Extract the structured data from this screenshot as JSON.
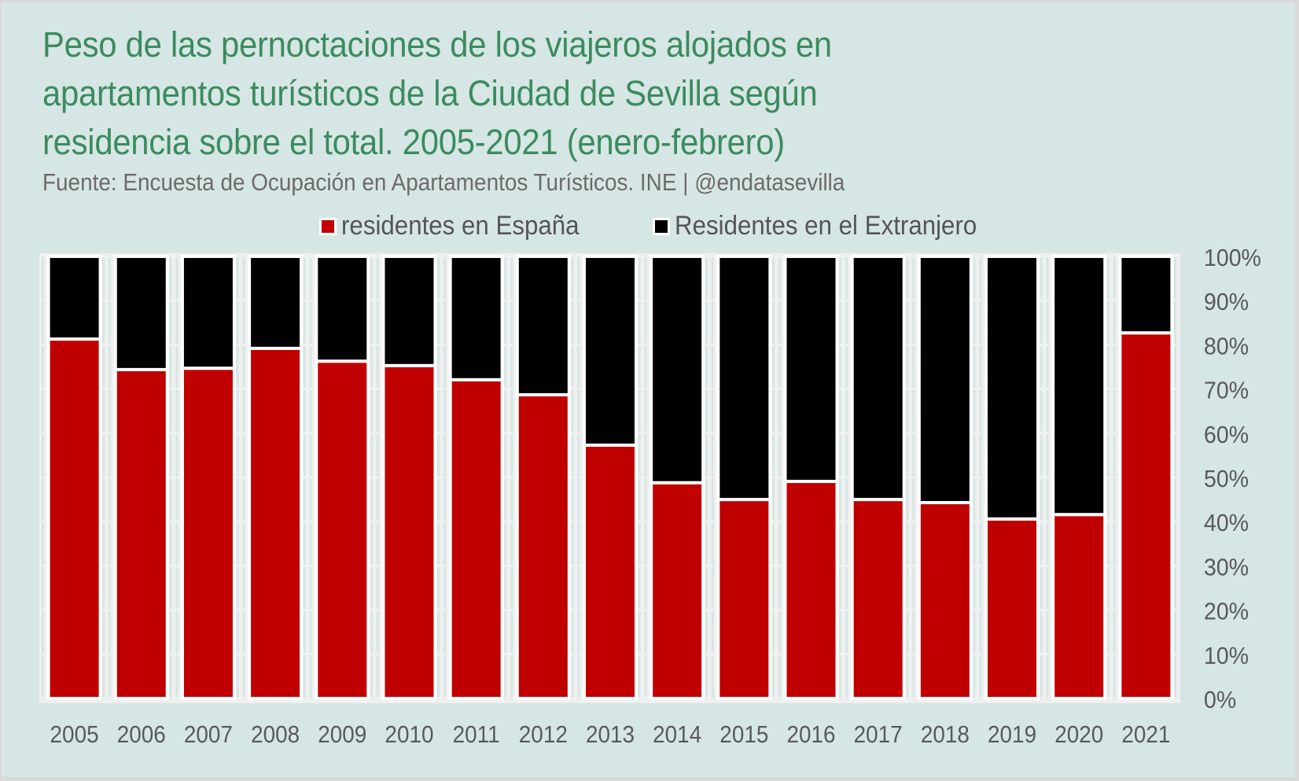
{
  "chart_data": {
    "type": "bar",
    "stacked": true,
    "percent_stacked": true,
    "title": "Peso de las pernoctaciones de los viajeros alojados en apartamentos turísticos de la Ciudad de Sevilla según residencia sobre el total. 2005-2021 (enero-febrero)",
    "title_lines": [
      "Peso de las pernoctaciones de los viajeros alojados en",
      "apartamentos turísticos de la Ciudad de Sevilla según",
      "residencia sobre el total. 2005-2021 (enero-febrero)"
    ],
    "subtitle": "Fuente: Encuesta de Ocupación en Apartamentos Turísticos. INE | @endatasevilla",
    "xlabel": "",
    "ylabel": "",
    "categories": [
      "2005",
      "2006",
      "2007",
      "2008",
      "2009",
      "2010",
      "2011",
      "2012",
      "2013",
      "2014",
      "2015",
      "2016",
      "2017",
      "2018",
      "2019",
      "2020",
      "2021"
    ],
    "series": [
      {
        "name": "residentes en España",
        "color": "#c00000",
        "values": [
          81.3,
          74.4,
          74.7,
          79.2,
          76.3,
          75.3,
          72.1,
          68.7,
          57.3,
          48.8,
          45.0,
          49.1,
          45.0,
          44.3,
          40.6,
          41.6,
          82.7
        ]
      },
      {
        "name": "Residentes en el Extranjero",
        "color": "#000000",
        "values": [
          18.7,
          25.6,
          25.3,
          20.8,
          23.7,
          24.7,
          27.9,
          31.3,
          42.7,
          51.2,
          55.0,
          50.9,
          55.0,
          55.7,
          59.4,
          58.4,
          17.3
        ]
      }
    ],
    "ylim": [
      0,
      100
    ],
    "yticks": [
      0,
      10,
      20,
      30,
      40,
      50,
      60,
      70,
      80,
      90,
      100
    ],
    "ytick_labels": [
      "0%",
      "10%",
      "20%",
      "30%",
      "40%",
      "50%",
      "60%",
      "70%",
      "80%",
      "90%",
      "100%"
    ],
    "y_axis_position": "right",
    "grid": true,
    "legend_position": "top"
  },
  "colors": {
    "background": "#d6e6e4",
    "title": "#3b8b5f",
    "text": "#5a5a5a"
  }
}
